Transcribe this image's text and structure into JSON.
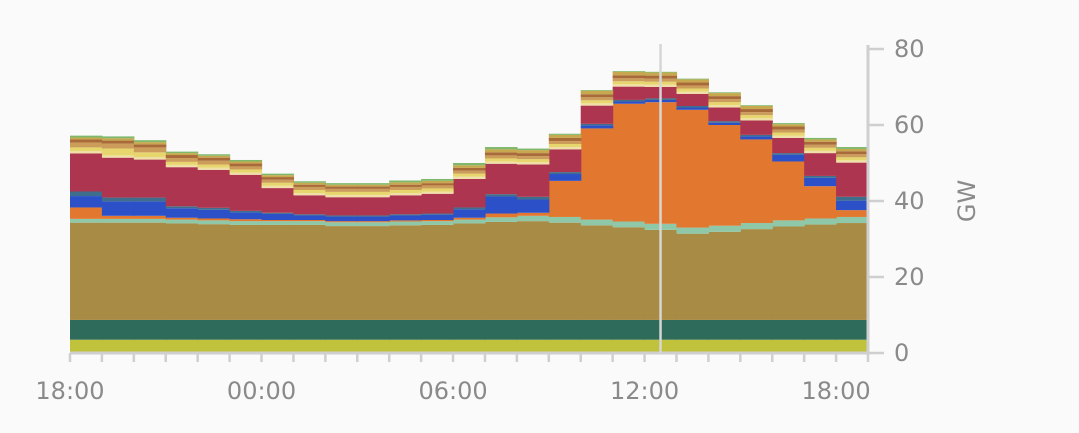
{
  "chart_data": {
    "type": "area",
    "step": true,
    "stacked": true,
    "x": [
      "18:00",
      "19:00",
      "20:00",
      "21:00",
      "22:00",
      "23:00",
      "00:00",
      "01:00",
      "02:00",
      "03:00",
      "04:00",
      "05:00",
      "06:00",
      "07:00",
      "08:00",
      "09:00",
      "10:00",
      "11:00",
      "12:00",
      "13:00",
      "14:00",
      "15:00",
      "16:00",
      "17:00",
      "18:00"
    ],
    "x_tick_labels": [
      "18:00",
      "00:00",
      "06:00",
      "12:00",
      "18:00"
    ],
    "y_tick_labels": [
      "0",
      "20",
      "40",
      "60",
      "80"
    ],
    "ylim": [
      0,
      80
    ],
    "ylabel": "GW",
    "y_axis_position": "right",
    "cursor_x": "12:30",
    "series": [
      {
        "color": "#c0c23c",
        "values": [
          3.5,
          3.5,
          3.5,
          3.5,
          3.5,
          3.5,
          3.5,
          3.5,
          3.5,
          3.5,
          3.5,
          3.5,
          3.5,
          3.5,
          3.5,
          3.5,
          3.5,
          3.5,
          3.5,
          3.5,
          3.5,
          3.5,
          3.5,
          3.5,
          3.5
        ]
      },
      {
        "color": "#2e6b5a",
        "values": [
          5.2,
          5.2,
          5.2,
          5.2,
          5.2,
          5.2,
          5.2,
          5.2,
          5.2,
          5.2,
          5.2,
          5.2,
          5.2,
          5.2,
          5.2,
          5.2,
          5.2,
          5.2,
          5.2,
          5.2,
          5.2,
          5.2,
          5.2,
          5.2,
          5.2
        ]
      },
      {
        "color": "#a88b45",
        "values": [
          25.6,
          25.6,
          25.6,
          25.4,
          25.2,
          25.0,
          25.0,
          25.0,
          24.7,
          24.7,
          24.9,
          25.0,
          25.4,
          25.8,
          26.0,
          25.6,
          24.9,
          24.4,
          23.7,
          22.7,
          23.2,
          23.9,
          24.6,
          25.1,
          25.5
        ]
      },
      {
        "color": "#8ec8a8",
        "values": [
          1.0,
          1.0,
          1.0,
          1.0,
          1.0,
          1.0,
          1.0,
          1.0,
          1.0,
          1.0,
          1.0,
          1.0,
          1.0,
          1.2,
          1.4,
          1.5,
          1.5,
          1.5,
          1.6,
          1.6,
          1.6,
          1.6,
          1.6,
          1.6,
          1.6
        ]
      },
      {
        "color": "#e2782f",
        "values": [
          3.0,
          0.8,
          0.8,
          0.5,
          0.5,
          0.5,
          0.3,
          0.3,
          0.3,
          0.3,
          0.3,
          0.3,
          0.5,
          1.0,
          0.8,
          9.5,
          24.0,
          31.0,
          32.0,
          31.0,
          26.5,
          22.0,
          15.5,
          8.5,
          1.8
        ]
      },
      {
        "color": "#2b50c8",
        "values": [
          3.0,
          3.8,
          3.8,
          2.5,
          2.3,
          1.8,
          1.6,
          1.2,
          1.2,
          1.2,
          1.3,
          1.4,
          2.2,
          4.5,
          3.5,
          1.8,
          0.8,
          0.6,
          0.6,
          0.6,
          0.6,
          0.8,
          1.8,
          2.2,
          2.5
        ]
      },
      {
        "color": "#3f6e8c",
        "values": [
          1.2,
          1.0,
          1.0,
          0.5,
          0.5,
          0.4,
          0.3,
          0.3,
          0.3,
          0.3,
          0.3,
          0.3,
          0.5,
          0.6,
          0.7,
          0.5,
          0.4,
          0.4,
          0.4,
          0.4,
          0.4,
          0.4,
          0.4,
          0.5,
          1.0
        ]
      },
      {
        "color": "#ad3550",
        "values": [
          10.0,
          10.5,
          10.0,
          10.3,
          10.0,
          9.5,
          6.5,
          5.0,
          4.8,
          4.8,
          5.0,
          5.2,
          7.5,
          8.0,
          8.5,
          6.0,
          4.8,
          3.5,
          3.0,
          3.2,
          3.6,
          3.8,
          4.0,
          6.0,
          9.0
        ]
      },
      {
        "color": "#f0e0a8",
        "values": [
          0.6,
          0.6,
          0.6,
          0.6,
          0.6,
          0.6,
          0.6,
          0.6,
          0.6,
          0.6,
          0.6,
          0.6,
          0.6,
          0.6,
          0.6,
          0.6,
          0.6,
          0.6,
          0.6,
          0.6,
          0.6,
          0.6,
          0.6,
          0.6,
          0.6
        ]
      },
      {
        "color": "#e7d66e",
        "values": [
          1.0,
          1.8,
          1.3,
          0.8,
          0.8,
          0.8,
          0.8,
          0.8,
          0.8,
          0.8,
          0.8,
          0.8,
          0.8,
          0.8,
          0.8,
          0.8,
          0.8,
          0.8,
          0.8,
          0.8,
          0.8,
          0.8,
          0.8,
          0.8,
          0.8
        ]
      },
      {
        "color": "#cc9d5a",
        "values": [
          1.3,
          1.3,
          1.3,
          1.0,
          1.0,
          0.8,
          0.8,
          0.8,
          0.8,
          0.8,
          0.8,
          0.8,
          0.8,
          0.8,
          0.8,
          0.8,
          0.8,
          0.8,
          0.8,
          0.8,
          0.8,
          0.8,
          0.8,
          0.8,
          0.8
        ]
      },
      {
        "color": "#a86a38",
        "values": [
          0.8,
          0.8,
          0.8,
          0.8,
          0.8,
          0.8,
          0.7,
          0.6,
          0.6,
          0.6,
          0.6,
          0.6,
          0.7,
          0.8,
          0.8,
          0.8,
          0.8,
          0.8,
          0.8,
          0.8,
          0.8,
          0.8,
          0.8,
          0.8,
          0.8
        ]
      },
      {
        "color": "#c8a84e",
        "values": [
          0.5,
          0.6,
          0.6,
          0.5,
          0.5,
          0.5,
          0.5,
          0.5,
          0.5,
          0.5,
          0.6,
          0.6,
          0.7,
          0.8,
          0.8,
          0.8,
          0.9,
          0.9,
          0.8,
          0.8,
          0.8,
          0.8,
          0.6,
          0.6,
          0.6
        ]
      },
      {
        "color": "#7fb86a",
        "values": [
          0.5,
          0.5,
          0.5,
          0.4,
          0.4,
          0.4,
          0.4,
          0.4,
          0.4,
          0.4,
          0.5,
          0.5,
          0.6,
          0.6,
          0.4,
          0.3,
          0.2,
          0.2,
          0.2,
          0.2,
          0.2,
          0.2,
          0.3,
          0.4,
          0.5
        ]
      }
    ]
  }
}
